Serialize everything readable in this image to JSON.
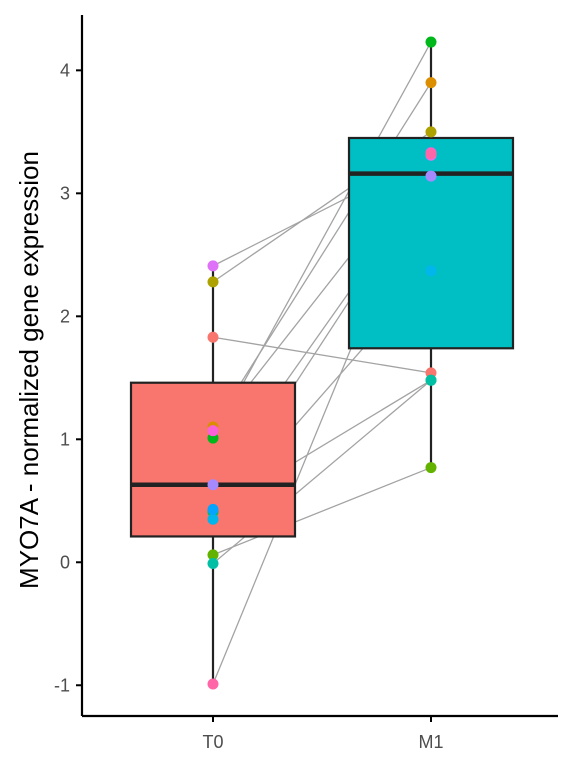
{
  "chart_data": {
    "type": "box",
    "ylabel": "MYO7A - normalized gene expression",
    "xlabel": "",
    "ylim": [
      -1.25,
      4.45
    ],
    "yticks": [
      -1,
      0,
      1,
      2,
      3,
      4
    ],
    "grid": false,
    "legend": "none",
    "categories": [
      "T0",
      "M1"
    ],
    "boxes": [
      {
        "category": "T0",
        "color": "#F8766D",
        "whisker_low": -0.99,
        "q1": 0.21,
        "median": 0.63,
        "q3": 1.46,
        "whisker_high": 2.41
      },
      {
        "category": "M1",
        "color": "#00BFC4",
        "whisker_low": 0.77,
        "q1": 1.74,
        "median": 3.16,
        "q3": 3.45,
        "whisker_high": 4.23
      }
    ],
    "subjects": [
      {
        "color": "#F8766D",
        "T0": 1.83,
        "M1": 1.54
      },
      {
        "color": "#DB8E00",
        "T0": 1.1,
        "M1": 3.9
      },
      {
        "color": "#AEA200",
        "T0": 2.28,
        "M1": 3.5
      },
      {
        "color": "#64B200",
        "T0": 0.06,
        "M1": 0.77
      },
      {
        "color": "#00B81B",
        "T0": 1.01,
        "M1": 4.23
      },
      {
        "color": "#00BD5C",
        "T0": 0.41,
        "M1": 1.48
      },
      {
        "color": "#00BFA5",
        "T0": -0.01,
        "M1": 1.48
      },
      {
        "color": "#00B6EB",
        "T0": 0.35,
        "M1": 2.37
      },
      {
        "color": "#06A4FF",
        "T0": 0.43,
        "M1": 3.14
      },
      {
        "color": "#A58AFF",
        "T0": 0.63,
        "M1": 3.14
      },
      {
        "color": "#DF70F8",
        "T0": 2.41,
        "M1": 3.31
      },
      {
        "color": "#FB61D7",
        "T0": 1.07,
        "M1": 3.33
      },
      {
        "color": "#FF66A8",
        "T0": -0.99,
        "M1": 3.32
      }
    ],
    "line_color": "#a3a3a3"
  }
}
